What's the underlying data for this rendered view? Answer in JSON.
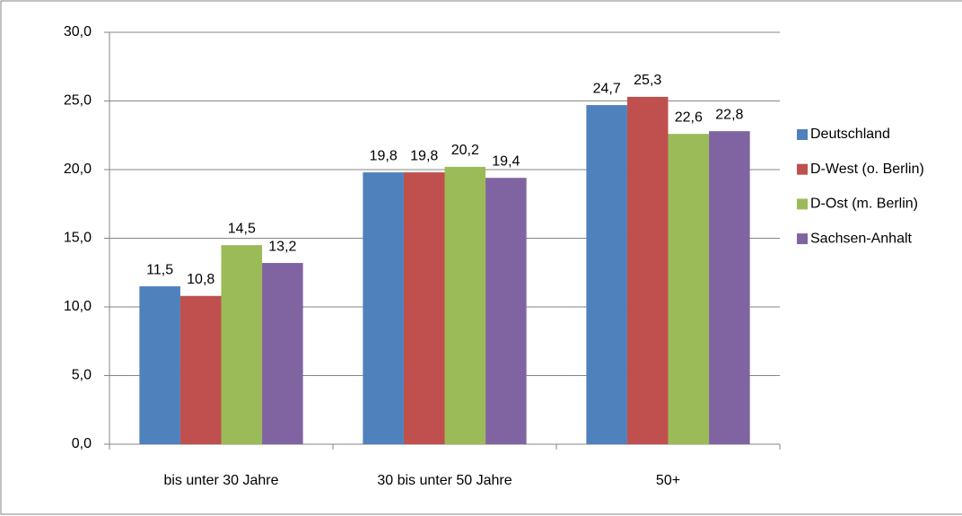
{
  "chart_data": {
    "type": "bar",
    "categories": [
      "bis unter 30 Jahre",
      "30 bis unter 50 Jahre",
      "50+"
    ],
    "series": [
      {
        "name": "Deutschland",
        "color": "#4f81bd",
        "values": [
          11.5,
          19.8,
          24.7
        ],
        "value_labels": [
          "11,5",
          "19,8",
          "24,7"
        ]
      },
      {
        "name": "D-West (o. Berlin)",
        "color": "#c0504d",
        "values": [
          10.8,
          19.8,
          25.3
        ],
        "value_labels": [
          "10,8",
          "19,8",
          "25,3"
        ]
      },
      {
        "name": "D-Ost (m. Berlin)",
        "color": "#9bbb59",
        "values": [
          14.5,
          20.2,
          22.6
        ],
        "value_labels": [
          "14,5",
          "20,2",
          "22,6"
        ]
      },
      {
        "name": "Sachsen-Anhalt",
        "color": "#8064a2",
        "values": [
          13.2,
          19.4,
          22.8
        ],
        "value_labels": [
          "13,2",
          "19,4",
          "22,8"
        ]
      }
    ],
    "ylim": [
      0,
      30
    ],
    "yticks": [
      {
        "value": 0,
        "label": "0,0"
      },
      {
        "value": 5,
        "label": "5,0"
      },
      {
        "value": 10,
        "label": "10,0"
      },
      {
        "value": 15,
        "label": "15,0"
      },
      {
        "value": 20,
        "label": "20,0"
      },
      {
        "value": 25,
        "label": "25,0"
      },
      {
        "value": 30,
        "label": "30,0"
      }
    ],
    "grid": true,
    "legend": "right"
  }
}
